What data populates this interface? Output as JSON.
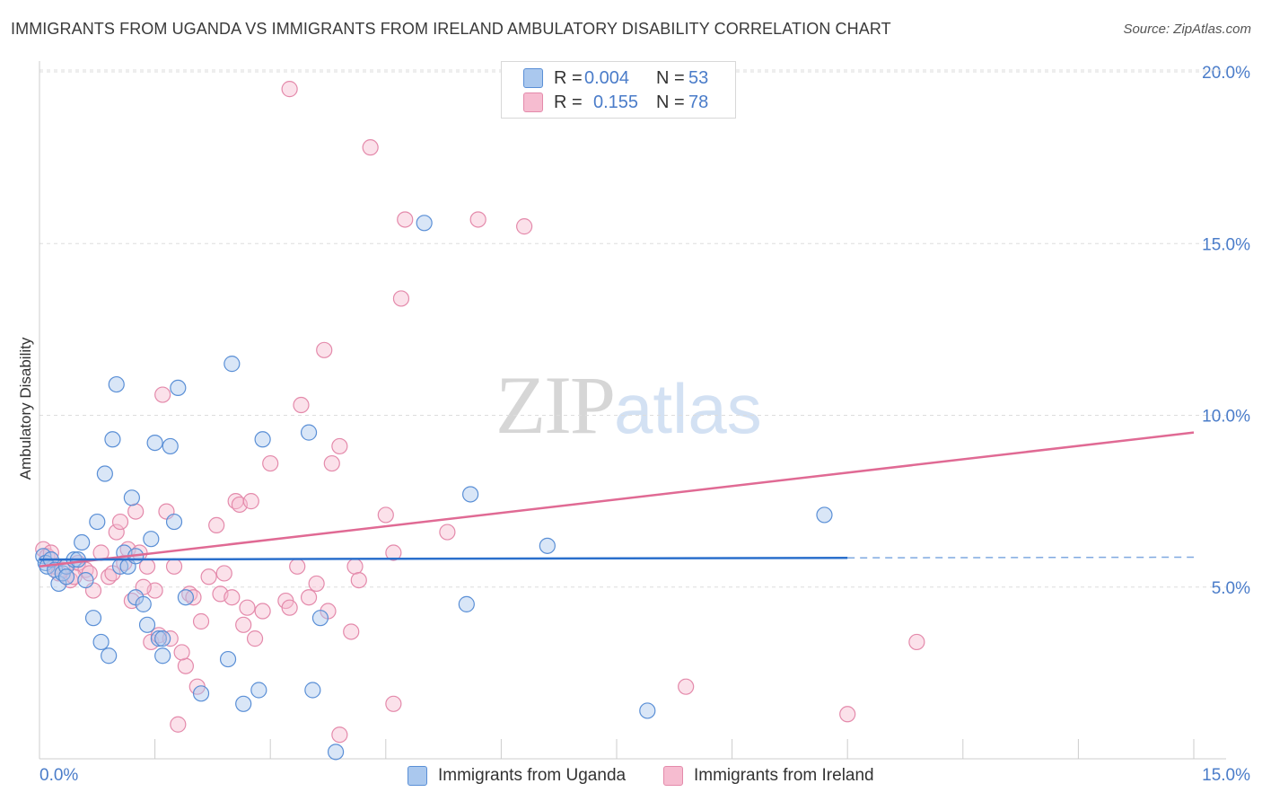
{
  "title": "IMMIGRANTS FROM UGANDA VS IMMIGRANTS FROM IRELAND AMBULATORY DISABILITY CORRELATION CHART",
  "source": "Source: ZipAtlas.com",
  "watermark": {
    "zip": "ZIP",
    "atlas": "atlas"
  },
  "legend": {
    "rows": [
      {
        "r_label": "R =",
        "r_value": "0.004",
        "n_label": "N =",
        "n_value": "53"
      },
      {
        "r_label": "R =",
        "r_value": "0.155",
        "n_label": "N =",
        "n_value": "78"
      }
    ]
  },
  "bottom_legend": [
    "Immigrants from Uganda",
    "Immigrants from Ireland"
  ],
  "colors": {
    "uganda_fill": "#aac8ee",
    "uganda_stroke": "#5a8fd6",
    "uganda_line": "#2a6fcc",
    "ireland_fill": "#f6bcd0",
    "ireland_stroke": "#e48aab",
    "ireland_line": "#e06a94",
    "tick_text": "#4a7cc9",
    "grid": "#dddddd"
  },
  "chart_data": {
    "type": "scatter",
    "title": "IMMIGRANTS FROM UGANDA VS IMMIGRANTS FROM IRELAND AMBULATORY DISABILITY CORRELATION CHART",
    "xlabel": "",
    "ylabel": "Ambulatory Disability",
    "xlim": [
      0,
      15
    ],
    "ylim": [
      0,
      20
    ],
    "y_ticks": [
      5,
      10,
      15,
      20
    ],
    "y_tick_labels": [
      "5.0%",
      "10.0%",
      "15.0%",
      "20.0%"
    ],
    "x_tick_labels": [
      "0.0%",
      "15.0%"
    ],
    "grid": true,
    "series": [
      {
        "name": "Immigrants from Uganda",
        "R": 0.004,
        "N": 53,
        "trend": {
          "x0": 0,
          "y0": 5.8,
          "x1": 10.5,
          "y1": 5.85,
          "x_dash_end": 15,
          "y_dash_end": 5.87
        },
        "points": [
          [
            0.05,
            5.9
          ],
          [
            0.08,
            5.7
          ],
          [
            0.1,
            5.6
          ],
          [
            0.15,
            5.8
          ],
          [
            0.2,
            5.5
          ],
          [
            0.25,
            5.1
          ],
          [
            0.3,
            5.4
          ],
          [
            0.35,
            5.6
          ],
          [
            0.45,
            5.8
          ],
          [
            0.55,
            6.3
          ],
          [
            0.6,
            5.2
          ],
          [
            0.7,
            4.1
          ],
          [
            0.75,
            6.9
          ],
          [
            0.85,
            8.3
          ],
          [
            0.9,
            3.0
          ],
          [
            0.95,
            9.3
          ],
          [
            1.05,
            5.6
          ],
          [
            1.1,
            6.0
          ],
          [
            1.15,
            5.6
          ],
          [
            1.2,
            7.6
          ],
          [
            1.25,
            4.7
          ],
          [
            1.35,
            4.5
          ],
          [
            1.4,
            3.9
          ],
          [
            1.45,
            6.4
          ],
          [
            1.5,
            9.2
          ],
          [
            1.55,
            3.5
          ],
          [
            1.6,
            3.0
          ],
          [
            1.7,
            9.1
          ],
          [
            1.75,
            6.9
          ],
          [
            1.8,
            10.8
          ],
          [
            1.9,
            4.7
          ],
          [
            2.1,
            1.9
          ],
          [
            2.45,
            2.9
          ],
          [
            2.5,
            11.5
          ],
          [
            2.65,
            1.6
          ],
          [
            2.85,
            2.0
          ],
          [
            2.9,
            9.3
          ],
          [
            3.5,
            9.5
          ],
          [
            3.55,
            2.0
          ],
          [
            3.65,
            4.1
          ],
          [
            3.85,
            0.2
          ],
          [
            5.0,
            15.6
          ],
          [
            5.55,
            4.5
          ],
          [
            5.6,
            7.7
          ],
          [
            6.6,
            6.2
          ],
          [
            7.9,
            1.4
          ],
          [
            10.2,
            7.1
          ],
          [
            1.0,
            10.9
          ],
          [
            0.8,
            3.4
          ],
          [
            1.25,
            5.9
          ],
          [
            0.5,
            5.8
          ],
          [
            0.35,
            5.3
          ],
          [
            1.6,
            3.5
          ]
        ]
      },
      {
        "name": "Immigrants from Ireland",
        "R": 0.155,
        "N": 78,
        "trend": {
          "x0": 0,
          "y0": 5.6,
          "x1": 15,
          "y1": 9.5
        },
        "points": [
          [
            0.05,
            6.1
          ],
          [
            0.1,
            5.9
          ],
          [
            0.2,
            5.6
          ],
          [
            0.3,
            5.5
          ],
          [
            0.4,
            5.2
          ],
          [
            0.5,
            5.7
          ],
          [
            0.6,
            5.5
          ],
          [
            0.7,
            4.9
          ],
          [
            0.8,
            6.0
          ],
          [
            0.9,
            5.3
          ],
          [
            1.0,
            6.6
          ],
          [
            1.05,
            6.9
          ],
          [
            1.1,
            5.7
          ],
          [
            1.15,
            6.1
          ],
          [
            1.2,
            4.6
          ],
          [
            1.25,
            7.2
          ],
          [
            1.3,
            6.0
          ],
          [
            1.4,
            5.6
          ],
          [
            1.45,
            3.4
          ],
          [
            1.5,
            4.9
          ],
          [
            1.55,
            3.6
          ],
          [
            1.6,
            10.6
          ],
          [
            1.65,
            7.2
          ],
          [
            1.7,
            3.5
          ],
          [
            1.75,
            5.6
          ],
          [
            1.8,
            1.0
          ],
          [
            1.9,
            2.7
          ],
          [
            1.95,
            4.8
          ],
          [
            2.05,
            2.1
          ],
          [
            2.1,
            4.0
          ],
          [
            2.2,
            5.3
          ],
          [
            2.3,
            6.8
          ],
          [
            2.35,
            4.8
          ],
          [
            2.4,
            5.4
          ],
          [
            2.5,
            4.7
          ],
          [
            2.55,
            7.5
          ],
          [
            2.6,
            7.4
          ],
          [
            2.65,
            3.9
          ],
          [
            2.7,
            4.4
          ],
          [
            2.75,
            7.5
          ],
          [
            2.8,
            3.5
          ],
          [
            2.9,
            4.3
          ],
          [
            3.0,
            8.6
          ],
          [
            3.2,
            4.6
          ],
          [
            3.25,
            4.4
          ],
          [
            3.35,
            5.6
          ],
          [
            3.4,
            10.3
          ],
          [
            3.5,
            4.7
          ],
          [
            3.6,
            5.1
          ],
          [
            3.7,
            11.9
          ],
          [
            3.75,
            4.3
          ],
          [
            3.8,
            8.6
          ],
          [
            3.9,
            9.1
          ],
          [
            4.05,
            3.7
          ],
          [
            4.1,
            5.6
          ],
          [
            4.15,
            5.2
          ],
          [
            4.5,
            7.1
          ],
          [
            4.6,
            6.0
          ],
          [
            4.7,
            13.4
          ],
          [
            4.75,
            15.7
          ],
          [
            5.3,
            6.6
          ],
          [
            3.25,
            19.5
          ],
          [
            4.3,
            17.8
          ],
          [
            5.7,
            15.7
          ],
          [
            6.3,
            15.5
          ],
          [
            4.6,
            1.6
          ],
          [
            8.4,
            2.1
          ],
          [
            10.5,
            1.3
          ],
          [
            11.4,
            3.4
          ],
          [
            0.15,
            6.0
          ],
          [
            0.25,
            5.4
          ],
          [
            0.45,
            5.3
          ],
          [
            0.65,
            5.4
          ],
          [
            0.95,
            5.4
          ],
          [
            1.35,
            5.0
          ],
          [
            2.0,
            4.7
          ],
          [
            1.85,
            3.1
          ],
          [
            3.9,
            0.7
          ]
        ]
      }
    ]
  }
}
